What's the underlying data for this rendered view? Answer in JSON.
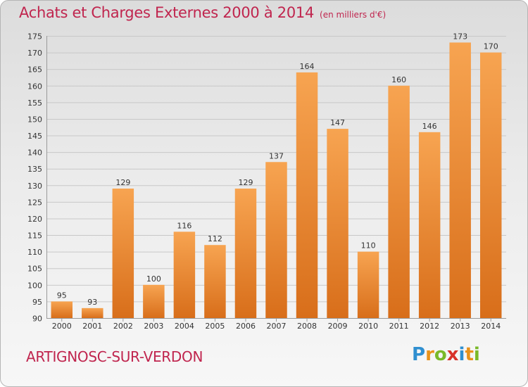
{
  "chart_data": {
    "type": "bar",
    "title": "Achats et Charges Externes 2000 à 2014",
    "subtitle": "(en milliers d'€)",
    "categories": [
      "2000",
      "2001",
      "2002",
      "2003",
      "2004",
      "2005",
      "2006",
      "2007",
      "2008",
      "2009",
      "2010",
      "2011",
      "2012",
      "2013",
      "2014"
    ],
    "values": [
      95,
      93,
      129,
      100,
      116,
      112,
      129,
      137,
      164,
      147,
      110,
      160,
      146,
      173,
      170
    ],
    "ylim": [
      90,
      175
    ],
    "yticks": [
      90,
      95,
      100,
      105,
      110,
      115,
      120,
      125,
      130,
      135,
      140,
      145,
      150,
      155,
      160,
      165,
      170,
      175
    ],
    "grid": true,
    "legend": "none",
    "bar_color_top": "#f7a451",
    "bar_color_bottom": "#d86e1a"
  },
  "footer": {
    "commune": "ARTIGNOSC-SUR-VERDON",
    "logo_letters": [
      "P",
      "r",
      "o",
      "x",
      "i",
      "t",
      "i"
    ],
    "logo_colors": [
      "#2f8fd0",
      "#e8921a",
      "#7ab929",
      "#d8322a",
      "#2f8fd0",
      "#e8921a",
      "#7ab929"
    ]
  }
}
